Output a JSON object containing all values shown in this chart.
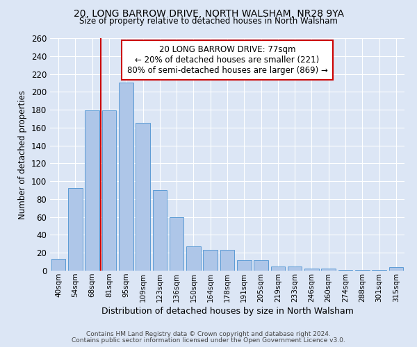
{
  "title1": "20, LONG BARROW DRIVE, NORTH WALSHAM, NR28 9YA",
  "title2": "Size of property relative to detached houses in North Walsham",
  "xlabel": "Distribution of detached houses by size in North Walsham",
  "ylabel": "Number of detached properties",
  "bar_labels": [
    "40sqm",
    "54sqm",
    "68sqm",
    "81sqm",
    "95sqm",
    "109sqm",
    "123sqm",
    "136sqm",
    "150sqm",
    "164sqm",
    "178sqm",
    "191sqm",
    "205sqm",
    "219sqm",
    "233sqm",
    "246sqm",
    "260sqm",
    "274sqm",
    "288sqm",
    "301sqm",
    "315sqm"
  ],
  "bar_heights": [
    13,
    92,
    179,
    179,
    210,
    165,
    90,
    60,
    27,
    23,
    23,
    12,
    12,
    5,
    5,
    2,
    2,
    1,
    1,
    1,
    4
  ],
  "bar_color": "#aec6e8",
  "bar_edge_color": "#5b9bd5",
  "vline_x_index": 3,
  "vline_color": "#cc0000",
  "ylim": [
    0,
    260
  ],
  "yticks": [
    0,
    20,
    40,
    60,
    80,
    100,
    120,
    140,
    160,
    180,
    200,
    220,
    240,
    260
  ],
  "annotation_title": "20 LONG BARROW DRIVE: 77sqm",
  "annotation_line1": "← 20% of detached houses are smaller (221)",
  "annotation_line2": "80% of semi-detached houses are larger (869) →",
  "annotation_box_color": "#ffffff",
  "annotation_box_edge": "#cc0000",
  "footer1": "Contains HM Land Registry data © Crown copyright and database right 2024.",
  "footer2": "Contains public sector information licensed under the Open Government Licence v3.0.",
  "background_color": "#dce6f5",
  "plot_bg_color": "#dce6f5"
}
